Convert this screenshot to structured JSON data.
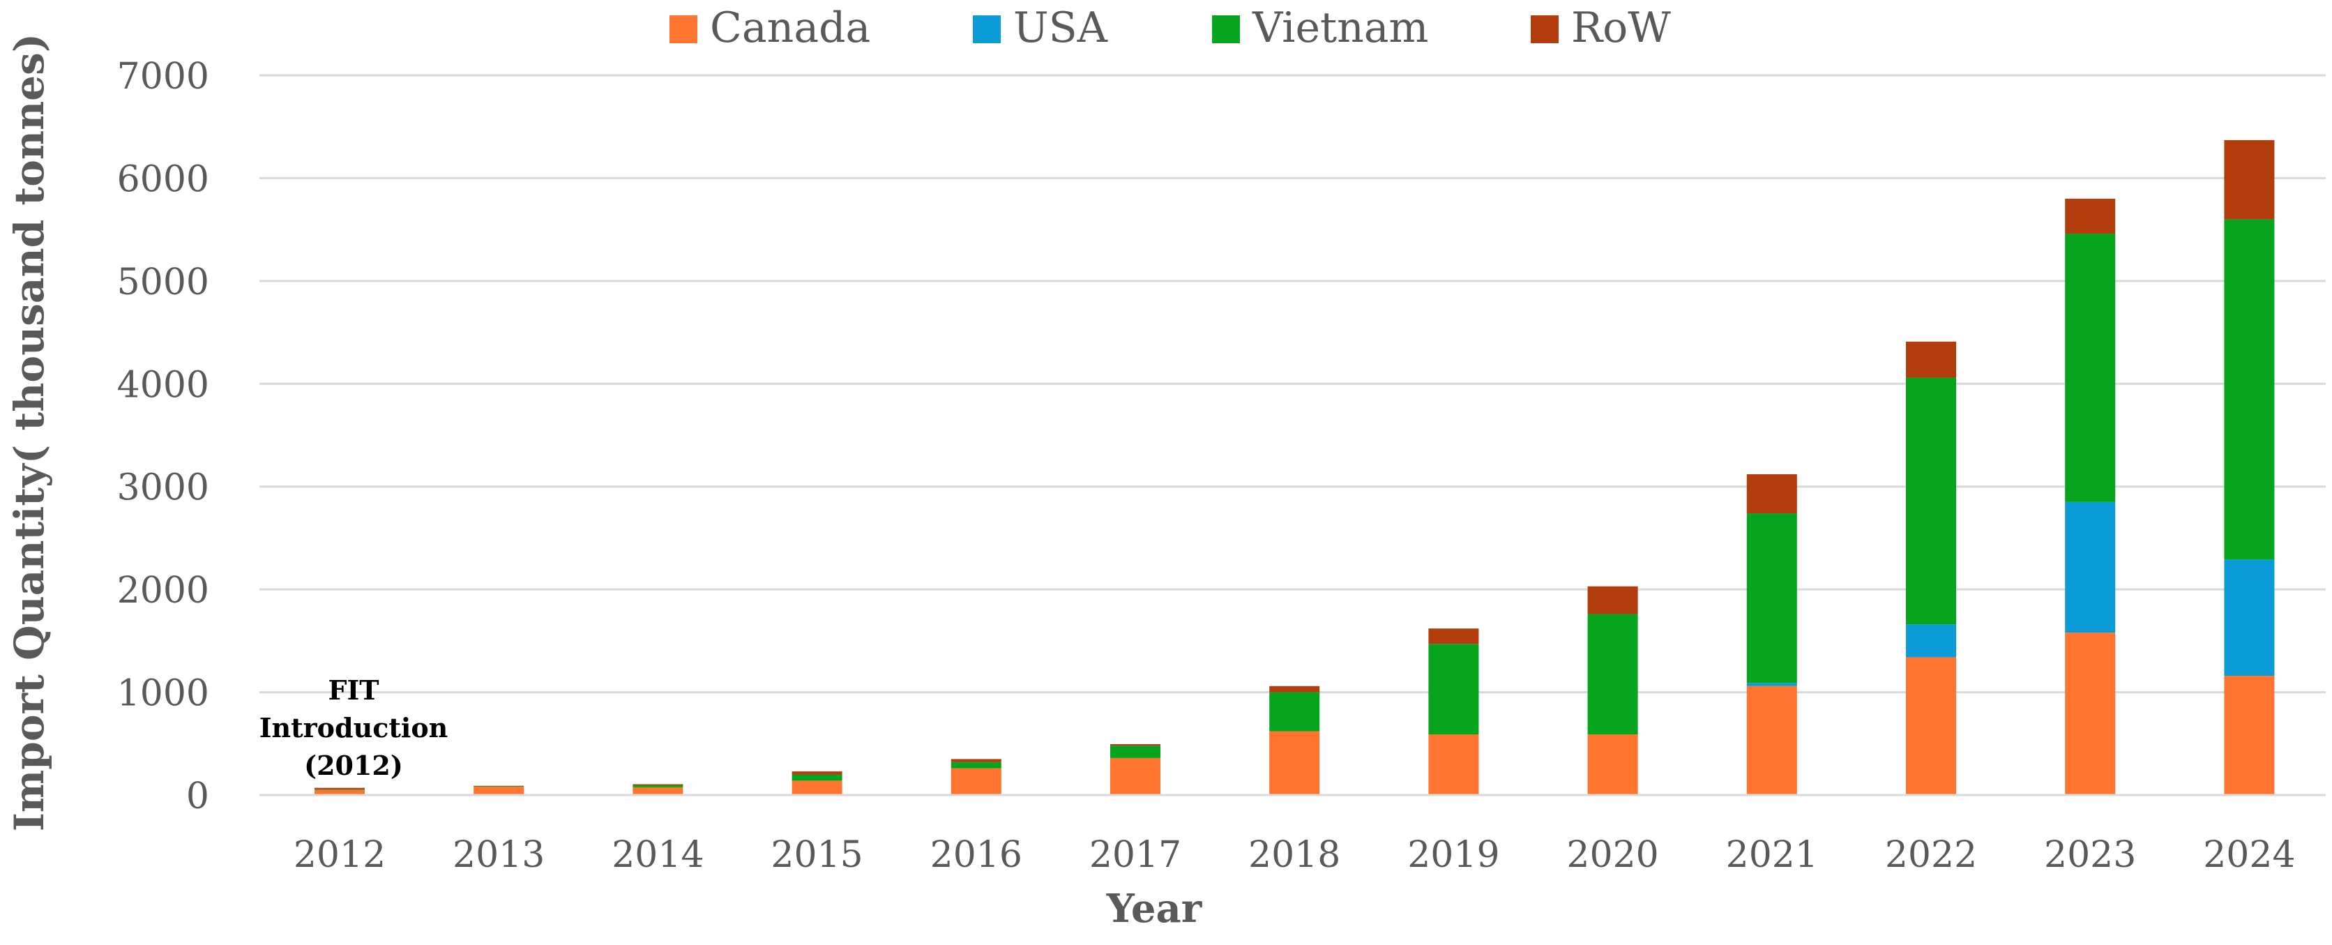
{
  "chart_data": {
    "type": "bar",
    "stacked": true,
    "xlabel": "Year",
    "ylabel": "Import Quantity( thousand tonnes)",
    "ylim": [
      0,
      7000
    ],
    "yticks": [
      0,
      1000,
      2000,
      3000,
      4000,
      5000,
      6000,
      7000
    ],
    "grid": true,
    "legend_position": "top-center",
    "categories": [
      "2012",
      "2013",
      "2014",
      "2015",
      "2016",
      "2017",
      "2018",
      "2019",
      "2020",
      "2021",
      "2022",
      "2023",
      "2024"
    ],
    "series": [
      {
        "name": "Canada",
        "color": "#FF7530",
        "values": [
          50,
          80,
          75,
          140,
          260,
          360,
          620,
          590,
          590,
          1060,
          1340,
          1580,
          1160
        ]
      },
      {
        "name": "USA",
        "color": "#0B9CD8",
        "values": [
          0,
          0,
          0,
          0,
          0,
          0,
          0,
          0,
          0,
          30,
          320,
          1270,
          1130
        ]
      },
      {
        "name": "Vietnam",
        "color": "#06A51D",
        "values": [
          5,
          5,
          20,
          60,
          60,
          120,
          380,
          880,
          1170,
          1650,
          2400,
          2610,
          3310
        ]
      },
      {
        "name": "RoW",
        "color": "#B23C0B",
        "values": [
          15,
          5,
          10,
          30,
          30,
          15,
          60,
          150,
          270,
          380,
          350,
          340,
          770
        ]
      }
    ],
    "annotations": [
      {
        "category": "2012",
        "lines": [
          "FIT",
          "Introduction",
          "(2012)"
        ]
      }
    ]
  }
}
